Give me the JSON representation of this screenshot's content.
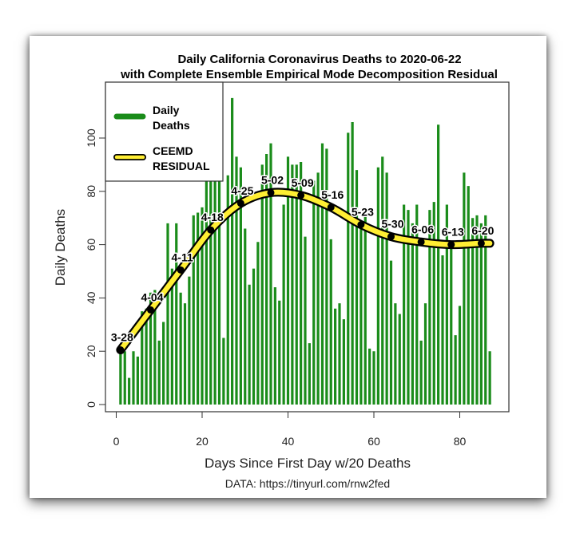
{
  "chart_data": {
    "type": "bar",
    "title": "Daily California Coronavirus Deaths to 2020-06-22",
    "subtitle": "with Complete Ensemble Empirical Mode Decomposition Residual",
    "xlabel": "Days Since First Day w/20 Deaths",
    "ylabel": "Daily Deaths",
    "source": "DATA: https://tinyurl.com/rnw2fed",
    "xlim": [
      0,
      88
    ],
    "ylim": [
      0,
      117
    ],
    "x_ticks": [
      0,
      20,
      40,
      60,
      80
    ],
    "y_ticks": [
      0,
      20,
      40,
      60,
      80,
      100
    ],
    "grid": false,
    "legend": {
      "placement": "top-left",
      "entries": [
        {
          "label_line1": "Daily",
          "label_line2": "Deaths",
          "style": "bar",
          "color": "#1a8c1a"
        },
        {
          "label_line1": "CEEMD",
          "label_line2": "RESIDUAL",
          "style": "line",
          "color": "#ffee33"
        }
      ]
    },
    "series": [
      {
        "name": "Daily Deaths",
        "type": "bar",
        "color": "#1a8c1a",
        "x": [
          1,
          2,
          3,
          4,
          5,
          6,
          7,
          8,
          9,
          10,
          11,
          12,
          13,
          14,
          15,
          16,
          17,
          18,
          19,
          20,
          21,
          22,
          23,
          24,
          25,
          26,
          27,
          28,
          29,
          30,
          31,
          32,
          33,
          34,
          35,
          36,
          37,
          38,
          39,
          40,
          41,
          42,
          43,
          44,
          45,
          46,
          47,
          48,
          49,
          50,
          51,
          52,
          53,
          54,
          55,
          56,
          57,
          58,
          59,
          60,
          61,
          62,
          63,
          64,
          65,
          66,
          67,
          68,
          69,
          70,
          71,
          72,
          73,
          74,
          75,
          76,
          77,
          78,
          79,
          80,
          81,
          82,
          83,
          84,
          85,
          86,
          87
        ],
        "values": [
          20,
          20,
          10,
          20,
          18,
          35,
          36,
          42,
          43,
          24,
          31,
          68,
          51,
          68,
          42,
          38,
          48,
          71,
          72,
          74,
          88,
          96,
          90,
          91,
          25,
          86,
          115,
          93,
          89,
          66,
          45,
          51,
          61,
          90,
          94,
          98,
          44,
          39,
          75,
          93,
          90,
          90,
          91,
          63,
          23,
          84,
          87,
          98,
          96,
          62,
          36,
          38,
          32,
          102,
          106,
          88,
          66,
          73,
          21,
          20,
          89,
          93,
          87,
          54,
          38,
          34,
          75,
          73,
          68,
          75,
          24,
          38,
          73,
          76,
          105,
          56,
          75,
          61,
          26,
          37,
          87,
          82,
          70,
          71,
          68,
          71,
          20
        ]
      },
      {
        "name": "CEEMD RESIDUAL",
        "type": "line",
        "color": "#ffee33",
        "outline": "#000000",
        "x": [
          1,
          8,
          15,
          22,
          29,
          36,
          43,
          50,
          57,
          64,
          71,
          78,
          85,
          87
        ],
        "values": [
          20.5,
          35.5,
          50.5,
          65.5,
          75.5,
          79.5,
          78.5,
          74,
          67.5,
          63,
          61,
          60,
          60.5,
          60.5
        ]
      }
    ],
    "annotations": [
      {
        "x": 1,
        "y": 20.5,
        "label": "3-28"
      },
      {
        "x": 8,
        "y": 35.5,
        "label": "4-04"
      },
      {
        "x": 15,
        "y": 50.5,
        "label": "4-11"
      },
      {
        "x": 22,
        "y": 65.5,
        "label": "4-18"
      },
      {
        "x": 29,
        "y": 75.5,
        "label": "4-25"
      },
      {
        "x": 36,
        "y": 79.5,
        "label": "5-02"
      },
      {
        "x": 43,
        "y": 78.5,
        "label": "5-09"
      },
      {
        "x": 50,
        "y": 74,
        "label": "5-16"
      },
      {
        "x": 57,
        "y": 67.5,
        "label": "5-23"
      },
      {
        "x": 64,
        "y": 63,
        "label": "5-30"
      },
      {
        "x": 71,
        "y": 61,
        "label": "6-06"
      },
      {
        "x": 78,
        "y": 60,
        "label": "6-13"
      },
      {
        "x": 85,
        "y": 60.5,
        "label": "6-20"
      }
    ]
  }
}
